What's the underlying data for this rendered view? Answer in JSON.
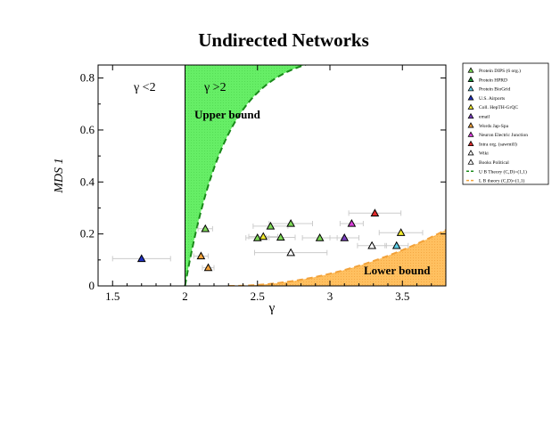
{
  "chart_data": {
    "type": "scatter",
    "title": "Undirected Networks",
    "xlabel": "γ",
    "ylabel": "MDS 1",
    "xlim": [
      1.4,
      3.8
    ],
    "ylim": [
      0,
      0.85
    ],
    "xticks": [
      "1.5",
      "2",
      "2.5",
      "3",
      "3.5"
    ],
    "xtick_values": [
      1.5,
      2,
      2.5,
      3,
      3.5
    ],
    "yticks": [
      "0",
      "0.2",
      "0.4",
      "0.6",
      "0.8"
    ],
    "ytick_values": [
      0,
      0.2,
      0.4,
      0.6,
      0.8
    ],
    "annotations": {
      "gamma_lt2": "γ <2",
      "gamma_gt2": "γ >2",
      "upper_bound": "Upper bound",
      "lower_bound": "Lower bound"
    },
    "legend_position": "right, outside plot",
    "series": [
      {
        "name": "Protein DIPS (6 org.)",
        "color": "#7ed957",
        "points": [
          {
            "x": 2.14,
            "y": 0.22,
            "xerr": 0.05
          },
          {
            "x": 2.5,
            "y": 0.185,
            "xerr": 0.08
          },
          {
            "x": 2.59,
            "y": 0.23,
            "xerr": 0.12
          },
          {
            "x": 2.66,
            "y": 0.187,
            "xerr": 0.1
          },
          {
            "x": 2.73,
            "y": 0.24,
            "xerr": 0.15
          },
          {
            "x": 2.93,
            "y": 0.185,
            "xerr": 0.12
          }
        ]
      },
      {
        "name": "Protein HPRD",
        "color": "#1f9a3a",
        "points": []
      },
      {
        "name": "Protein BioGrid",
        "color": "#5ecfe8",
        "points": [
          {
            "x": 3.46,
            "y": 0.155,
            "xerr": 0.08
          }
        ]
      },
      {
        "name": "U.S. Airports",
        "color": "#1f2fbf",
        "points": [
          {
            "x": 1.7,
            "y": 0.105,
            "xerr": 0.2
          }
        ]
      },
      {
        "name": "Coll. HepTH-GrQC",
        "color": "#f2ea2e",
        "points": [
          {
            "x": 2.54,
            "y": 0.19,
            "xerr": 0.1
          },
          {
            "x": 3.49,
            "y": 0.205,
            "xerr": 0.15
          }
        ]
      },
      {
        "name": "email",
        "color": "#7a3fbf",
        "points": [
          {
            "x": 3.1,
            "y": 0.185,
            "xerr": 0.1
          }
        ]
      },
      {
        "name": "Words Jap-Spa",
        "color": "#f2a23a",
        "points": [
          {
            "x": 2.11,
            "y": 0.115,
            "xerr": 0.05
          },
          {
            "x": 2.16,
            "y": 0.07,
            "xerr": 0.04
          }
        ]
      },
      {
        "name": "Neuron Electric Junction",
        "color": "#d93fd9",
        "points": [
          {
            "x": 3.15,
            "y": 0.24,
            "xerr": 0.08
          }
        ]
      },
      {
        "name": "Intra org. (sawmill)",
        "color": "#e02b2b",
        "points": [
          {
            "x": 3.31,
            "y": 0.28,
            "xerr": 0.18
          }
        ]
      },
      {
        "name": "Wiki",
        "color": "#ffffff",
        "points": [
          {
            "x": 3.29,
            "y": 0.155,
            "xerr": 0.1
          }
        ]
      },
      {
        "name": "Books Political",
        "color": "#ffffff",
        "points": [
          {
            "x": 2.73,
            "y": 0.128,
            "xerr": 0.25
          }
        ]
      }
    ],
    "curves": [
      {
        "name": "U B Theory (C,D)=(1,1)",
        "color": "#1a8a1a",
        "style": "dashed",
        "fill": "#66ee66"
      },
      {
        "name": "L B theory (C,D)=(1,1)",
        "color": "#f2a23a",
        "style": "dashed",
        "fill": "#ffc060"
      }
    ]
  }
}
